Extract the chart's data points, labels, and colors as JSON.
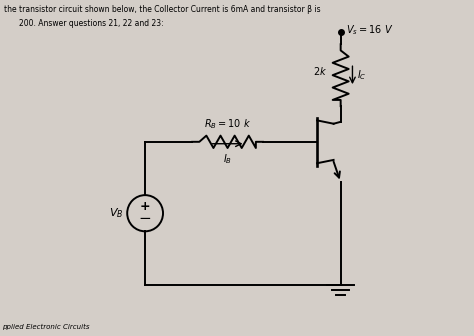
{
  "bg_color": "#d4cec8",
  "line_color": "#000000",
  "title_line1": "the transistor circuit shown below, the Collector Current is 6mA and transistor β is",
  "title_line2": "200. Answer questions 21, 22 and 23:",
  "footer_text": "pplied Electronic Circuits",
  "fig_width": 4.74,
  "fig_height": 3.36
}
